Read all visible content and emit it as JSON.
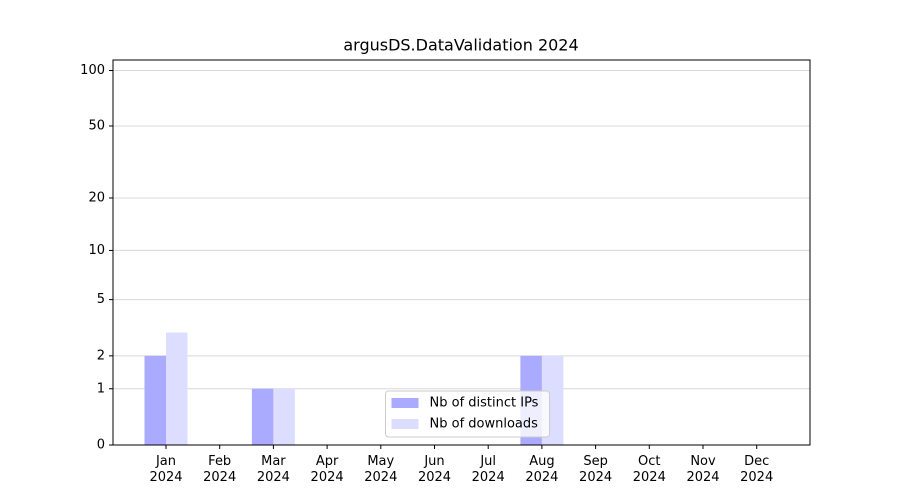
{
  "chart_data": {
    "type": "bar",
    "title": "argusDS.DataValidation 2024",
    "categories": [
      "Jan 2024",
      "Feb 2024",
      "Mar 2024",
      "Apr 2024",
      "May 2024",
      "Jun 2024",
      "Jul 2024",
      "Aug 2024",
      "Sep 2024",
      "Oct 2024",
      "Nov 2024",
      "Dec 2024"
    ],
    "series": [
      {
        "name": "Nb of distinct IPs",
        "color": "#aaaaff",
        "values": [
          2,
          0,
          1,
          0,
          0,
          0,
          0,
          2,
          0,
          0,
          0,
          0
        ]
      },
      {
        "name": "Nb of downloads",
        "color": "#ddddff",
        "values": [
          3,
          0,
          1,
          0,
          0,
          0,
          0,
          2,
          0,
          0,
          0,
          0
        ]
      }
    ],
    "yscale": "log1p",
    "ylim": [
      0,
      114
    ],
    "yticks": [
      0,
      1,
      2,
      5,
      10,
      20,
      50,
      100
    ],
    "grid": true,
    "legend": "lower center"
  }
}
